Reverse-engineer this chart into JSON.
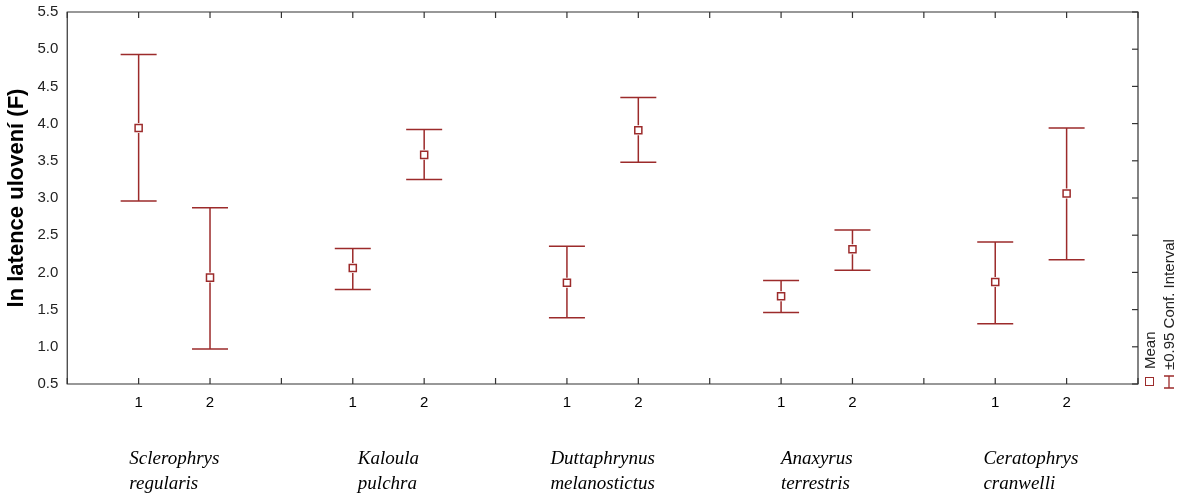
{
  "chart_data": {
    "type": "scatter",
    "ylabel": "ln latence ulovení (F)",
    "categories": [
      null,
      "1",
      "2",
      null,
      "1",
      "2",
      null,
      "1",
      "2",
      null,
      "1",
      "2",
      null,
      "1",
      "2",
      null
    ],
    "series": [
      {
        "name": "Mean",
        "color": "#9c2b2b",
        "values": [
          null,
          3.94,
          1.93,
          null,
          2.06,
          3.58,
          null,
          1.86,
          3.91,
          null,
          1.68,
          2.31,
          null,
          1.87,
          3.06,
          null
        ],
        "errors": [
          null,
          [
            2.96,
            4.93
          ],
          [
            0.97,
            2.87
          ],
          null,
          [
            1.77,
            2.32
          ],
          [
            3.25,
            3.92
          ],
          null,
          [
            1.39,
            2.35
          ],
          [
            3.48,
            4.35
          ],
          null,
          [
            1.46,
            1.89
          ],
          [
            2.03,
            2.57
          ],
          null,
          [
            1.31,
            2.41
          ],
          [
            2.17,
            3.94
          ],
          null
        ]
      }
    ],
    "ylim": [
      0.5,
      5.5
    ],
    "yticks": [
      0.5,
      {
        "value": 1,
        "label": "1.0"
      },
      1.5,
      {
        "value": 2,
        "label": "2.0"
      },
      2.5,
      {
        "value": 3,
        "label": "3.0"
      },
      3.5,
      {
        "value": 4,
        "label": "4.0"
      },
      4.5,
      {
        "value": 5,
        "label": "5.0"
      },
      5.5
    ],
    "marker": "square",
    "grid": false,
    "legend": "right",
    "annotations": [
      "Sclerophrys regularis",
      "Kaloula pulchra",
      "Duttaphrynus melanostictus",
      "Anaxyrus terrestris",
      "Ceratophrys cranwelli",
      "±0.95 Conf. Interval"
    ]
  }
}
